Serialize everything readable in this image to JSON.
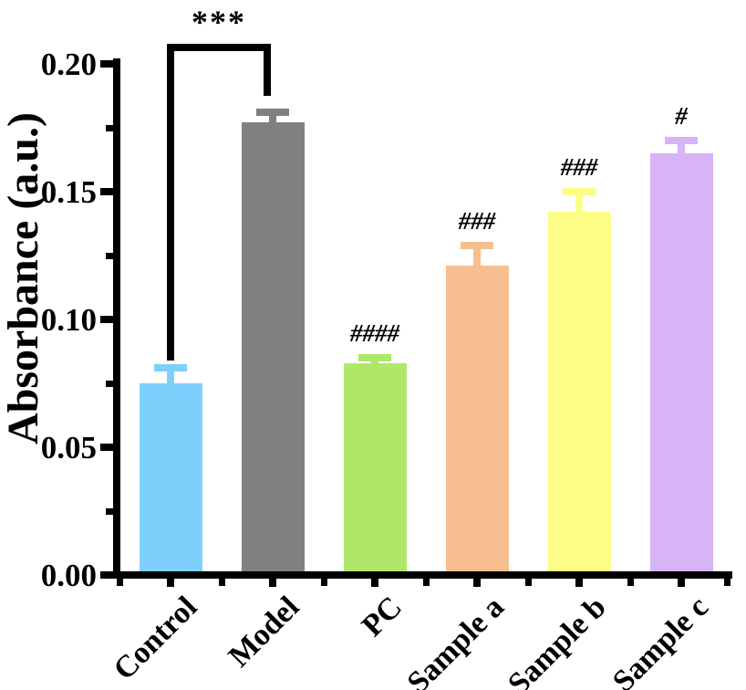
{
  "chart_data": {
    "type": "bar",
    "title": "",
    "xlabel": "",
    "ylabel": "Absorbance (a.u.)",
    "ylim": [
      0,
      0.2
    ],
    "grid": false,
    "legend": false,
    "error_bar_direction": "plus",
    "y_ticks": [
      "0.00",
      "0.05",
      "0.10",
      "0.15",
      "0.20"
    ],
    "y_tick_values": [
      0,
      0.05,
      0.1,
      0.15,
      0.2
    ],
    "y_minor_tick_values": [
      0.025,
      0.075,
      0.125,
      0.175
    ],
    "categories": [
      "Control",
      "Model",
      "PC",
      "Sample a",
      "Sample b",
      "Sample c"
    ],
    "values": [
      0.075,
      0.177,
      0.083,
      0.121,
      0.142,
      0.165
    ],
    "errors": [
      0.006,
      0.004,
      0.002,
      0.008,
      0.008,
      0.005
    ],
    "bar_colors": [
      "#7ECFFC",
      "#808080",
      "#AFE868",
      "#F7BF8F",
      "#FDFD88",
      "#D7B3F8"
    ],
    "axis_color": "#000000",
    "significance_labels": [
      "",
      "",
      "####",
      "###",
      "###",
      "#"
    ],
    "comparison": {
      "from": "Control",
      "to": "Model",
      "label": "***"
    }
  }
}
